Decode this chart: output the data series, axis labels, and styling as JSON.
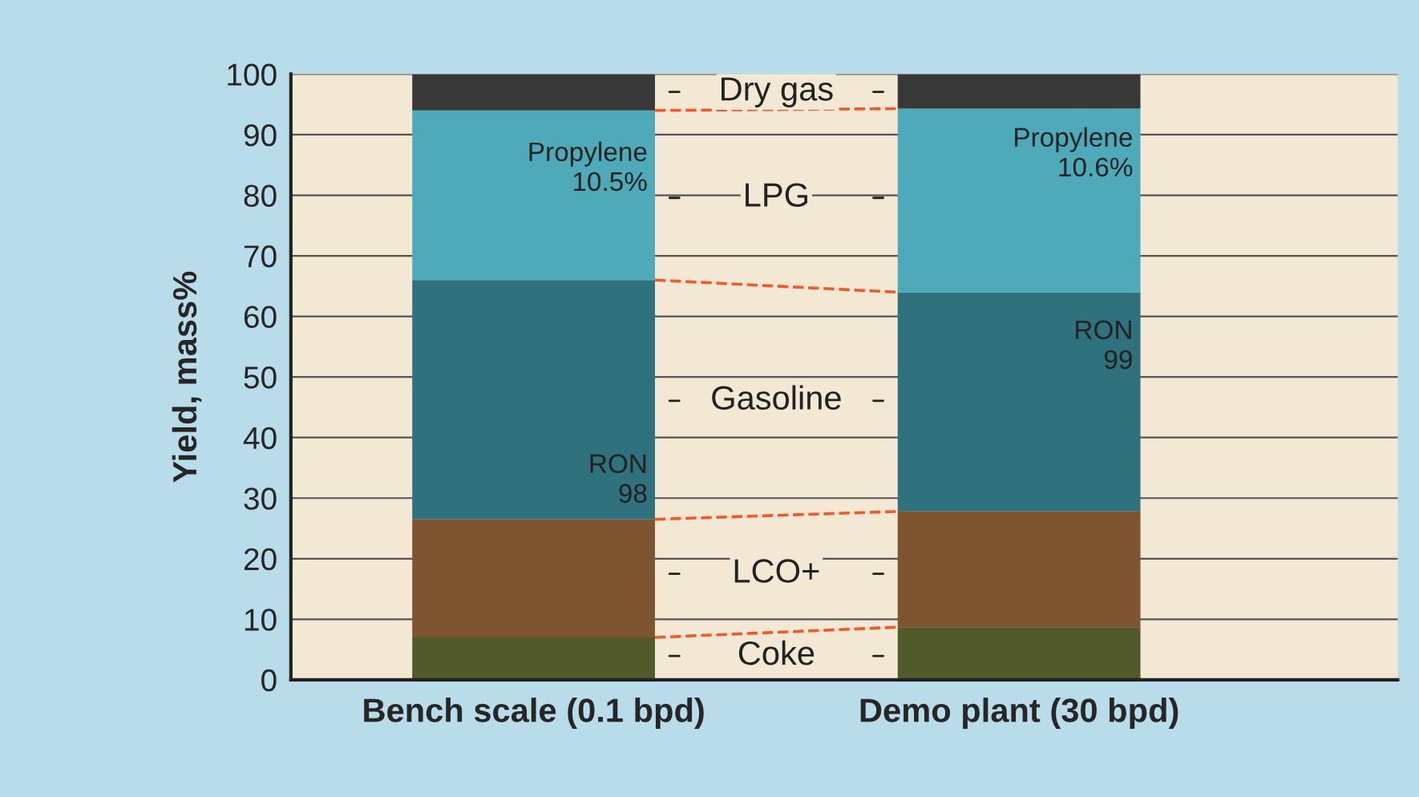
{
  "chart_data": {
    "type": "bar",
    "stacked": true,
    "ylabel": "Yield, mass%",
    "categories": [
      "Bench scale (0.1 bpd)",
      "Demo plant (30 bpd)"
    ],
    "series": [
      {
        "name": "Coke",
        "color": "#525a2c",
        "values": [
          7,
          8.7
        ]
      },
      {
        "name": "LCO+",
        "color": "#7e5431",
        "values": [
          19.5,
          19.1
        ]
      },
      {
        "name": "Gasoline",
        "color": "#2f717c",
        "values": [
          39.5,
          36.2
        ]
      },
      {
        "name": "LPG",
        "color": "#4eaab9",
        "values": [
          28,
          30.3
        ]
      },
      {
        "name": "Dry gas",
        "color": "#383838",
        "values": [
          6,
          5.7
        ]
      }
    ],
    "ylim": [
      0,
      100
    ],
    "yticks": [
      0,
      10,
      20,
      30,
      40,
      50,
      60,
      70,
      80,
      90,
      100
    ],
    "grid": "y",
    "legend": false,
    "annotations": [
      {
        "text": "Propylene\n10.5%",
        "x": "Bench scale (0.1 bpd)",
        "y": 94
      },
      "Propylene\n10.6%",
      {
        "text": "RON\n98",
        "x": "Bench scale (0.1 bpd)",
        "y": 26.5
      },
      "RON\n99"
    ]
  }
}
